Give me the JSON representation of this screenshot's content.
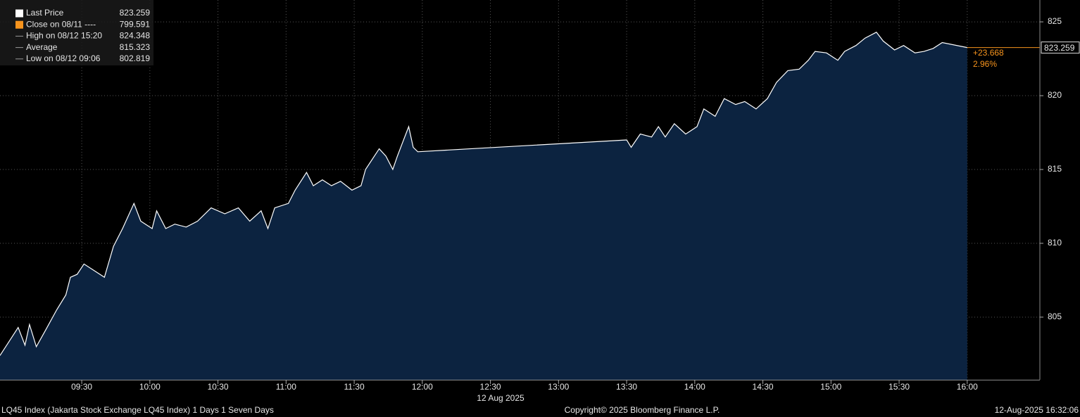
{
  "chart_data": {
    "type": "area",
    "legend": [
      {
        "label": "Last Price",
        "value": 823.259,
        "color": "#ffffff"
      },
      {
        "label": "Close on 08/11 ----",
        "value": 799.591,
        "color": "#f7941d"
      },
      {
        "label": "High on 08/12 15:20",
        "value": 824.348,
        "color": "#9a9a9a"
      },
      {
        "label": "Average",
        "value": 815.323,
        "color": "#9a9a9a"
      },
      {
        "label": "Low on 08/12 09:06",
        "value": 802.819,
        "color": "#9a9a9a"
      }
    ],
    "series": [
      {
        "color": "#ffffff",
        "fill": "#0c2340",
        "x": [
          "08:54",
          "09:02",
          "09:05",
          "09:07",
          "09:10",
          "09:14",
          "09:19",
          "09:23",
          "09:25",
          "09:28",
          "09:31",
          "09:36",
          "09:40",
          "09:44",
          "09:48",
          "09:53",
          "09:56",
          "10:01",
          "10:03",
          "10:07",
          "10:11",
          "10:16",
          "10:21",
          "10:27",
          "10:33",
          "10:39",
          "10:44",
          "10:49",
          "10:52",
          "10:55",
          "11:01",
          "11:04",
          "11:09",
          "11:12",
          "11:16",
          "11:20",
          "11:24",
          "11:29",
          "11:33",
          "11:35",
          "11:41",
          "11:44",
          "11:47",
          "11:49",
          "11:51",
          "11:54",
          "11:56",
          "11:58",
          "13:30",
          "13:32",
          "13:36",
          "13:41",
          "13:44",
          "13:47",
          "13:51",
          "13:56",
          "14:01",
          "14:04",
          "14:09",
          "14:13",
          "14:18",
          "14:22",
          "14:27",
          "14:32",
          "14:36",
          "14:41",
          "14:46",
          "14:50",
          "14:53",
          "14:58",
          "15:03",
          "15:06",
          "15:11",
          "15:15",
          "15:20",
          "15:23",
          "15:28",
          "15:32",
          "15:37",
          "15:41",
          "15:45",
          "15:49",
          "16:00"
        ],
        "values": [
          802.4,
          804.3,
          803.1,
          804.5,
          803.0,
          804.1,
          805.5,
          806.5,
          807.7,
          807.9,
          808.6,
          808.1,
          807.7,
          809.8,
          811.0,
          812.7,
          811.5,
          811.0,
          812.2,
          811.0,
          811.3,
          811.1,
          811.5,
          812.4,
          812.0,
          812.4,
          811.5,
          812.2,
          811.0,
          812.4,
          812.7,
          813.6,
          814.8,
          813.9,
          814.3,
          813.9,
          814.2,
          813.6,
          813.9,
          815.0,
          816.4,
          815.9,
          815.0,
          815.9,
          816.7,
          817.9,
          816.5,
          816.2,
          817.0,
          816.5,
          817.4,
          817.2,
          817.9,
          817.2,
          818.1,
          817.4,
          817.9,
          819.1,
          818.6,
          819.8,
          819.4,
          819.6,
          819.1,
          819.8,
          820.9,
          821.7,
          821.8,
          822.4,
          823.0,
          822.9,
          822.4,
          823.0,
          823.4,
          823.9,
          824.3,
          823.7,
          823.1,
          823.4,
          822.9,
          823.0,
          823.2,
          823.6,
          823.259
        ]
      }
    ],
    "last_line_color": "#f7941d",
    "change_label": "+23.668",
    "change_pct_label": "2.96%",
    "xlim": [
      "08:54",
      "16:32"
    ],
    "xticks": [
      "09:30",
      "10:00",
      "10:30",
      "11:00",
      "11:30",
      "12:00",
      "12:30",
      "13:00",
      "13:30",
      "14:00",
      "14:30",
      "15:00",
      "15:30",
      "16:00"
    ],
    "x_date_label": "12 Aug 2025",
    "ylim": [
      800.76,
      826.48
    ],
    "yticks": [
      805,
      810,
      815,
      820,
      825
    ],
    "grid": true,
    "footer_left": "LQ45 Index (Jakarta Stock Exchange LQ45 Index) 1 Days 1 Seven Days",
    "footer_center": "Copyright© 2025 Bloomberg Finance L.P.",
    "footer_right": "12-Aug-2025 16:32:06"
  }
}
